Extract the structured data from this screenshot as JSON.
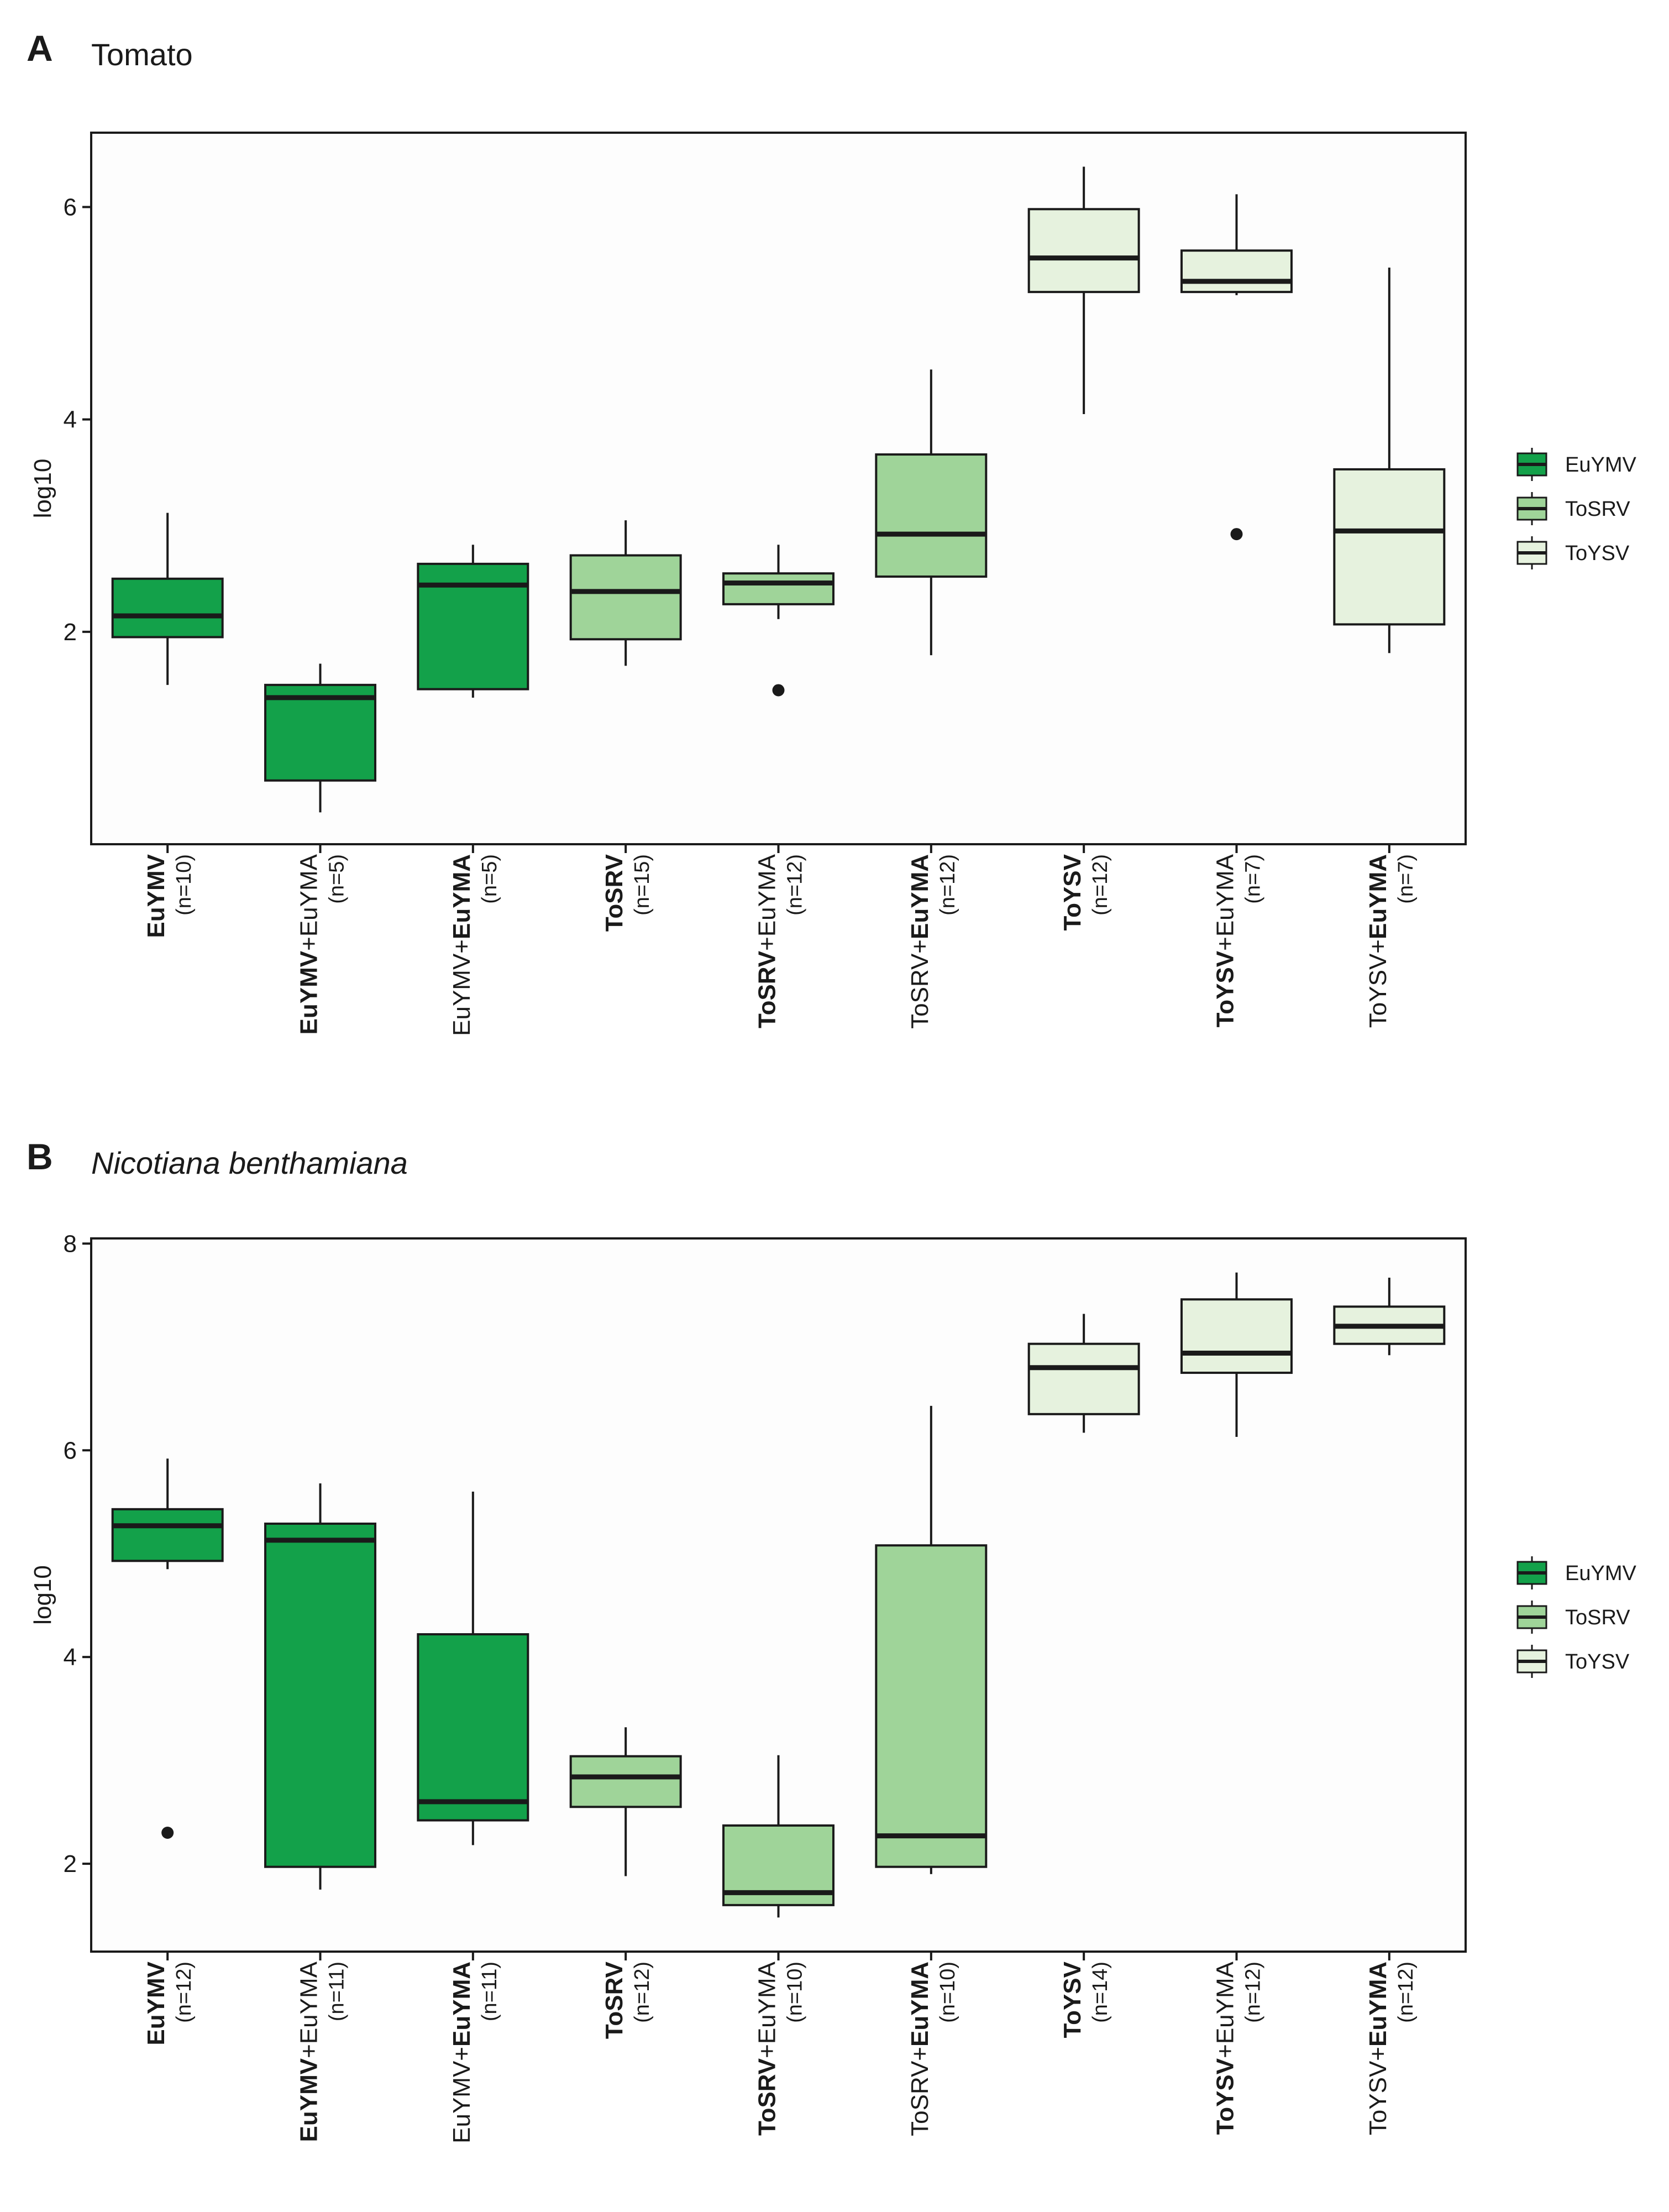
{
  "colors": {
    "EuYMV": "#13a14a",
    "ToSRV": "#9fd499",
    "ToYSV": "#e6f2de",
    "outline": "#1a1a1a",
    "panel_bg": "#fdfdfd"
  },
  "chart_data": [
    {
      "type": "box",
      "panel": "A",
      "title": "Tomato",
      "ylabel": "log10",
      "ylim": [
        0,
        6.7
      ],
      "yticks": [
        2,
        4,
        6
      ],
      "legend": {
        "placement": "right",
        "entries": [
          {
            "name": "EuYMV",
            "color_key": "EuYMV"
          },
          {
            "name": "ToSRV",
            "color_key": "ToSRV"
          },
          {
            "name": "ToYSV",
            "color_key": "ToYSV"
          }
        ]
      },
      "boxes": [
        {
          "parts": [
            {
              "text": "EuYMV",
              "bold": true
            }
          ],
          "n": "(n=10)",
          "group": "EuYMV",
          "whisker_low": 1.5,
          "q1": 1.95,
          "median": 2.15,
          "q3": 2.5,
          "whisker_high": 3.12,
          "outliers": []
        },
        {
          "parts": [
            {
              "text": "EuYMV",
              "bold": true
            },
            {
              "text": "+EuYMA",
              "bold": false
            }
          ],
          "n": "(n=5)",
          "group": "EuYMV",
          "whisker_low": 0.3,
          "q1": 0.6,
          "median": 1.38,
          "q3": 1.5,
          "whisker_high": 1.7,
          "outliers": []
        },
        {
          "parts": [
            {
              "text": "EuYMV+",
              "bold": false
            },
            {
              "text": "EuYMA",
              "bold": true
            }
          ],
          "n": "(n=5)",
          "group": "EuYMV",
          "whisker_low": 1.38,
          "q1": 1.46,
          "median": 2.44,
          "q3": 2.64,
          "whisker_high": 2.82,
          "outliers": []
        },
        {
          "parts": [
            {
              "text": "ToSRV",
              "bold": true
            }
          ],
          "n": "(n=15)",
          "group": "ToSRV",
          "whisker_low": 1.68,
          "q1": 1.93,
          "median": 2.38,
          "q3": 2.72,
          "whisker_high": 3.05,
          "outliers": []
        },
        {
          "parts": [
            {
              "text": "ToSRV",
              "bold": true
            },
            {
              "text": "+EuYMA",
              "bold": false
            }
          ],
          "n": "(n=12)",
          "group": "ToSRV",
          "whisker_low": 2.12,
          "q1": 2.26,
          "median": 2.46,
          "q3": 2.55,
          "whisker_high": 2.82,
          "outliers": [
            1.45
          ]
        },
        {
          "parts": [
            {
              "text": "ToSRV+",
              "bold": false
            },
            {
              "text": "EuYMA",
              "bold": true
            }
          ],
          "n": "(n=12)",
          "group": "ToSRV",
          "whisker_low": 1.78,
          "q1": 2.52,
          "median": 2.92,
          "q3": 3.67,
          "whisker_high": 4.47,
          "outliers": []
        },
        {
          "parts": [
            {
              "text": "ToYSV",
              "bold": true
            }
          ],
          "n": "(n=12)",
          "group": "ToYSV",
          "whisker_low": 4.05,
          "q1": 5.2,
          "median": 5.52,
          "q3": 5.98,
          "whisker_high": 6.38,
          "outliers": []
        },
        {
          "parts": [
            {
              "text": "ToYSV",
              "bold": true
            },
            {
              "text": "+EuYMA",
              "bold": false
            }
          ],
          "n": "(n=7)",
          "group": "ToYSV",
          "whisker_low": 5.17,
          "q1": 5.2,
          "median": 5.3,
          "q3": 5.59,
          "whisker_high": 6.12,
          "outliers": [
            2.92
          ]
        },
        {
          "parts": [
            {
              "text": "ToYSV+",
              "bold": false
            },
            {
              "text": "EuYMA",
              "bold": true
            }
          ],
          "n": "(n=7)",
          "group": "ToYSV",
          "whisker_low": 1.8,
          "q1": 2.07,
          "median": 2.95,
          "q3": 3.53,
          "whisker_high": 5.43,
          "outliers": []
        }
      ]
    },
    {
      "type": "box",
      "panel": "B",
      "title": "Nicotiana benthamiana",
      "title_italic": true,
      "ylabel": "log10",
      "ylim": [
        1.15,
        8.05
      ],
      "yticks": [
        2,
        4,
        6,
        8
      ],
      "legend": {
        "placement": "right",
        "entries": [
          {
            "name": "EuYMV",
            "color_key": "EuYMV"
          },
          {
            "name": "ToSRV",
            "color_key": "ToSRV"
          },
          {
            "name": "ToYSV",
            "color_key": "ToYSV"
          }
        ]
      },
      "boxes": [
        {
          "parts": [
            {
              "text": "EuYMV",
              "bold": true
            }
          ],
          "n": "(n=12)",
          "group": "EuYMV",
          "whisker_low": 4.85,
          "q1": 4.93,
          "median": 5.27,
          "q3": 5.43,
          "whisker_high": 5.92,
          "outliers": [
            2.3
          ]
        },
        {
          "parts": [
            {
              "text": "EuYMV",
              "bold": true
            },
            {
              "text": "+EuYMA",
              "bold": false
            }
          ],
          "n": "(n=11)",
          "group": "EuYMV",
          "whisker_low": 1.75,
          "q1": 1.97,
          "median": 5.13,
          "q3": 5.29,
          "whisker_high": 5.68,
          "outliers": []
        },
        {
          "parts": [
            {
              "text": "EuYMV+",
              "bold": false
            },
            {
              "text": "EuYMA",
              "bold": true
            }
          ],
          "n": "(n=11)",
          "group": "EuYMV",
          "whisker_low": 2.18,
          "q1": 2.42,
          "median": 2.6,
          "q3": 4.22,
          "whisker_high": 5.6,
          "outliers": []
        },
        {
          "parts": [
            {
              "text": "ToSRV",
              "bold": true
            }
          ],
          "n": "(n=12)",
          "group": "ToSRV",
          "whisker_low": 1.88,
          "q1": 2.55,
          "median": 2.84,
          "q3": 3.04,
          "whisker_high": 3.32,
          "outliers": []
        },
        {
          "parts": [
            {
              "text": "ToSRV",
              "bold": true
            },
            {
              "text": "+EuYMA",
              "bold": false
            }
          ],
          "n": "(n=10)",
          "group": "ToSRV",
          "whisker_low": 1.48,
          "q1": 1.6,
          "median": 1.72,
          "q3": 2.37,
          "whisker_high": 3.05,
          "outliers": []
        },
        {
          "parts": [
            {
              "text": "ToSRV+",
              "bold": false
            },
            {
              "text": "EuYMA",
              "bold": true
            }
          ],
          "n": "(n=10)",
          "group": "ToSRV",
          "whisker_low": 1.9,
          "q1": 1.97,
          "median": 2.27,
          "q3": 5.08,
          "whisker_high": 6.43,
          "outliers": []
        },
        {
          "parts": [
            {
              "text": "ToYSV",
              "bold": true
            }
          ],
          "n": "(n=14)",
          "group": "ToYSV",
          "whisker_low": 6.17,
          "q1": 6.35,
          "median": 6.8,
          "q3": 7.03,
          "whisker_high": 7.32,
          "outliers": []
        },
        {
          "parts": [
            {
              "text": "ToYSV",
              "bold": true
            },
            {
              "text": "+EuYMA",
              "bold": false
            }
          ],
          "n": "(n=12)",
          "group": "ToYSV",
          "whisker_low": 6.13,
          "q1": 6.75,
          "median": 6.94,
          "q3": 7.46,
          "whisker_high": 7.72,
          "outliers": []
        },
        {
          "parts": [
            {
              "text": "ToYSV+",
              "bold": false
            },
            {
              "text": "EuYMA",
              "bold": true
            }
          ],
          "n": "(n=12)",
          "group": "ToYSV",
          "whisker_low": 6.92,
          "q1": 7.03,
          "median": 7.2,
          "q3": 7.39,
          "whisker_high": 7.67,
          "outliers": []
        }
      ]
    }
  ]
}
